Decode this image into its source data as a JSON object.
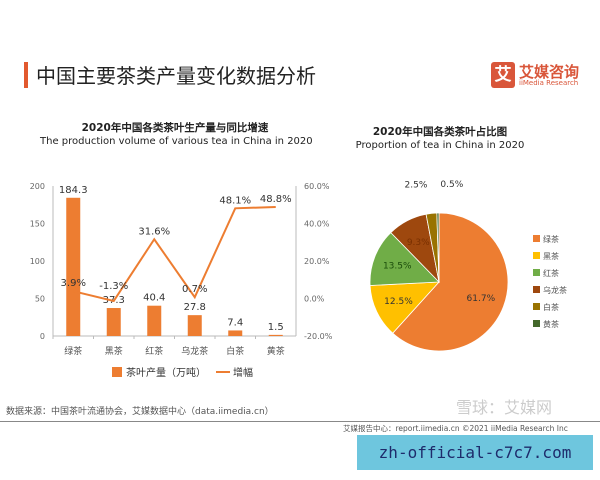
{
  "header": {
    "title": "中国主要茶类产量变化数据分析",
    "logo_cn": "艾媒咨询",
    "logo_en": "iiMedia Research",
    "logo_mark": "艾"
  },
  "chart_data": [
    {
      "type": "bar",
      "title": "2020年中国各类茶叶生产量与同比增速",
      "subtitle": "The production volume of various tea in China in 2020",
      "categories": [
        "绿茶",
        "黑茶",
        "红茶",
        "乌龙茶",
        "白茶",
        "黄茶"
      ],
      "series": [
        {
          "name": "茶叶产量（万吨）",
          "type": "bar",
          "axis": "left",
          "values": [
            184.3,
            37.3,
            40.4,
            27.8,
            7.4,
            1.5
          ],
          "labels": [
            "184.3",
            "37.3",
            "40.4",
            "27.8",
            "7.4",
            "1.5"
          ],
          "color": "#ED7D31"
        },
        {
          "name": "增幅",
          "type": "line",
          "axis": "right",
          "values": [
            3.9,
            -1.3,
            31.6,
            0.7,
            48.1,
            48.8
          ],
          "labels": [
            "3.9%",
            "-1.3%",
            "31.6%",
            "0.7%",
            "48.1%",
            "48.8%"
          ],
          "color": "#ED7D31"
        }
      ],
      "left_axis": {
        "ylim": [
          0,
          200
        ],
        "ticks": [
          "0",
          "50",
          "100",
          "150",
          "200"
        ]
      },
      "right_axis": {
        "ylim": [
          -20,
          60
        ],
        "ticks": [
          "-20.0%",
          "0.0%",
          "20.0%",
          "40.0%",
          "60.0%"
        ]
      },
      "grid": false,
      "legend": "bottom"
    },
    {
      "type": "pie",
      "title": "2020年中国各类茶叶占比图",
      "subtitle": "Proportion of tea in China in 2020",
      "categories": [
        "绿茶",
        "黑茶",
        "红茶",
        "乌龙茶",
        "白茶",
        "黄茶"
      ],
      "values": [
        61.7,
        12.5,
        13.5,
        9.3,
        2.5,
        0.5
      ],
      "labels": [
        "61.7%",
        "12.5%",
        "13.5%",
        "9.3%",
        "2.5%",
        "0.5%"
      ],
      "colors": [
        "#ED7D31",
        "#FFC000",
        "#70AD47",
        "#9E480E",
        "#997300",
        "#43682B"
      ],
      "legend": "right"
    }
  ],
  "footer": {
    "source": "数据来源：中国茶叶流通协会，艾媒数据中心（data.iimedia.cn）",
    "report": "艾媒报告中心：report.iimedia.cn   ©2021  iiMedia Research  Inc",
    "watermark": "雪球：艾媒网",
    "banner": "zh-official-c7c7.com"
  }
}
